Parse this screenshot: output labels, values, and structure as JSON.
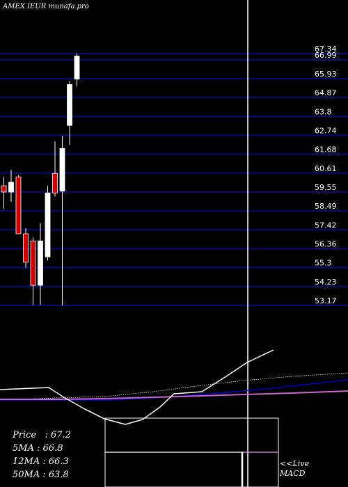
{
  "header": {
    "title": "AMEX  IEUR munafa.pro"
  },
  "colors": {
    "background": "#000000",
    "gridline": "#0a0a7a",
    "up": "#ffffff",
    "down": "#cc0000",
    "price_line": "#ffffff",
    "ma_blue": "#0000cc",
    "ma_pink": "#cc66cc",
    "text": "#ffffff"
  },
  "stats": [
    {
      "label": "Price   : 67.2"
    },
    {
      "label": "5MA : 66.8"
    },
    {
      "label": "12MA : 66.3"
    },
    {
      "label": "50MA : 63.8"
    }
  ],
  "live_label_1": "<<Live",
  "live_label_2": "MACD",
  "chart_data": {
    "type": "candlestick",
    "yticks": [
      67.34,
      66.99,
      65.93,
      64.87,
      63.8,
      62.74,
      61.68,
      60.61,
      59.55,
      58.49,
      57.42,
      56.36,
      55.3,
      54.23,
      53.17
    ],
    "tick_labels": [
      "67.34",
      "66.99",
      "65.93",
      "64.87",
      "63.8",
      "62.74",
      "61.68",
      "60.61",
      "59.55",
      "58.49",
      "57.42",
      "56.36",
      "55.3",
      "54.23",
      "53.17"
    ],
    "ylim": [
      53.17,
      67.34
    ],
    "candles": [
      {
        "o": 59.9,
        "c": 59.55,
        "h": 60.4,
        "l": 58.6
      },
      {
        "o": 59.55,
        "c": 60.1,
        "h": 60.8,
        "l": 59.0
      },
      {
        "o": 60.4,
        "c": 57.2,
        "h": 60.5,
        "l": 57.2
      },
      {
        "o": 57.2,
        "c": 55.6,
        "h": 57.5,
        "l": 55.3
      },
      {
        "o": 56.8,
        "c": 54.3,
        "h": 57.0,
        "l": 53.2
      },
      {
        "o": 54.3,
        "c": 56.8,
        "h": 57.8,
        "l": 53.2
      },
      {
        "o": 55.9,
        "c": 59.5,
        "h": 59.9,
        "l": 55.7
      },
      {
        "o": 60.6,
        "c": 59.5,
        "h": 62.4,
        "l": 59.3
      },
      {
        "o": 59.6,
        "c": 62.0,
        "h": 62.7,
        "l": 53.17
      },
      {
        "o": 63.3,
        "c": 65.6,
        "h": 65.8,
        "l": 62.2
      },
      {
        "o": 65.9,
        "c": 67.2,
        "h": 67.34,
        "l": 65.5
      }
    ],
    "vertical_marker_index": 29,
    "macd_visible": true
  }
}
